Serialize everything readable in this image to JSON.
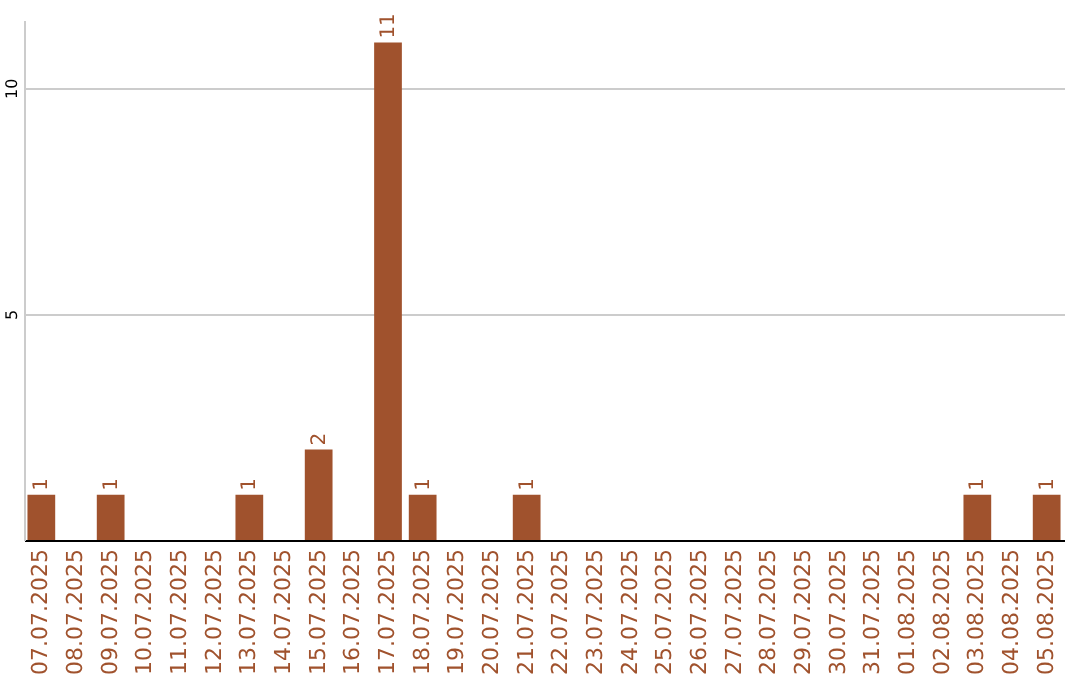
{
  "chart_data": {
    "type": "bar",
    "categories": [
      "07.07.2025",
      "08.07.2025",
      "09.07.2025",
      "10.07.2025",
      "11.07.2025",
      "12.07.2025",
      "13.07.2025",
      "14.07.2025",
      "15.07.2025",
      "16.07.2025",
      "17.07.2025",
      "18.07.2025",
      "19.07.2025",
      "20.07.2025",
      "21.07.2025",
      "22.07.2025",
      "23.07.2025",
      "24.07.2025",
      "25.07.2025",
      "26.07.2025",
      "27.07.2025",
      "28.07.2025",
      "29.07.2025",
      "30.07.2025",
      "31.07.2025",
      "01.08.2025",
      "02.08.2025",
      "03.08.2025",
      "04.08.2025",
      "05.08.2025"
    ],
    "values": [
      1,
      0,
      1,
      0,
      0,
      0,
      1,
      0,
      2,
      0,
      11,
      1,
      0,
      0,
      1,
      0,
      0,
      0,
      0,
      0,
      0,
      0,
      0,
      0,
      0,
      0,
      0,
      1,
      0,
      1
    ],
    "value_labels": [
      "1",
      null,
      "1",
      null,
      null,
      null,
      "1",
      null,
      "2",
      null,
      "11",
      "1",
      null,
      null,
      "1",
      null,
      null,
      null,
      null,
      null,
      null,
      null,
      null,
      null,
      null,
      null,
      null,
      "1",
      null,
      "1"
    ],
    "color": "#a0522d",
    "ylim": [
      0,
      11.5
    ],
    "yticks": [
      5,
      10
    ],
    "grid": "y"
  }
}
